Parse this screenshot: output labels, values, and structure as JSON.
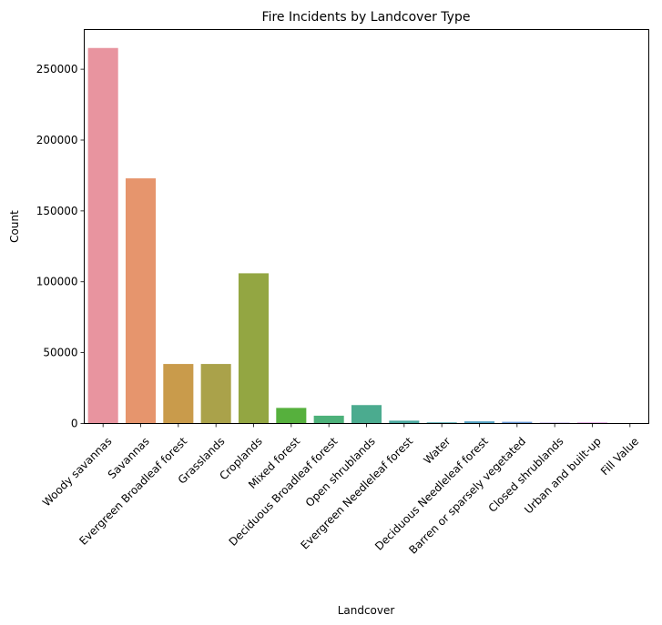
{
  "chart_data": {
    "type": "bar",
    "title": "Fire Incidents by Landcover Type",
    "xlabel": "Landcover",
    "ylabel": "Count",
    "ylim": [
      0,
      278000
    ],
    "yticks": [
      0,
      50000,
      100000,
      150000,
      200000,
      250000
    ],
    "ytick_labels": [
      "0",
      "50000",
      "100000",
      "150000",
      "200000",
      "250000"
    ],
    "grid": false,
    "categories": [
      "Woody savannas",
      "Savannas",
      "Evergreen Broadleaf forest",
      "Grasslands",
      "Croplands",
      "Mixed forest",
      "Deciduous Broadleaf forest",
      "Open shrublands",
      "Evergreen Needleleaf forest",
      "Water",
      "Deciduous Needleleaf forest",
      "Barren or sparsely vegetated",
      "Closed shrublands",
      "Urban and built-up",
      "Fill Value"
    ],
    "values": [
      265000,
      173000,
      42000,
      42000,
      106000,
      11000,
      5500,
      13000,
      2000,
      800,
      1500,
      1200,
      600,
      700,
      0
    ],
    "colors": [
      "#e8949f",
      "#e6956d",
      "#c99b4b",
      "#aaa24a",
      "#93a642",
      "#56b03d",
      "#4db17a",
      "#4bab8f",
      "#4aa89e",
      "#4ca5ae",
      "#4f9fc0",
      "#6b9ad7",
      "#a48fd8",
      "#d382d4",
      "#e48bbd"
    ]
  }
}
